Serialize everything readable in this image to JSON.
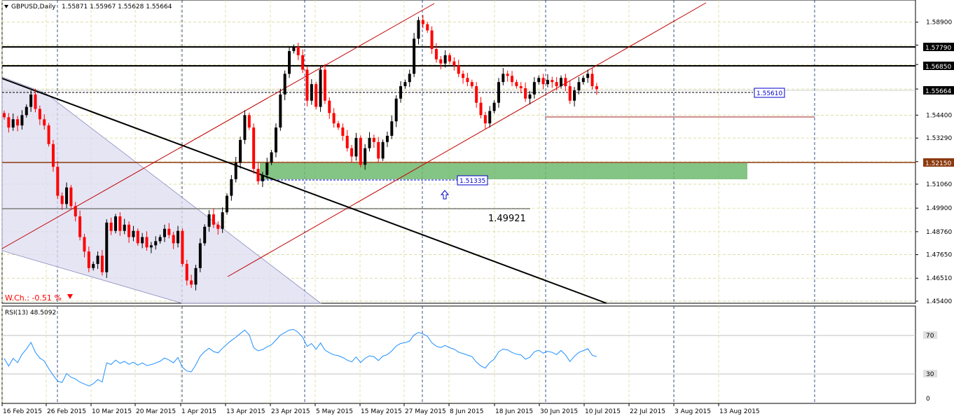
{
  "header": {
    "symbol_text": "GBPUSD,Daily",
    "quote_text": "1.55871 1.55967 1.55628 1.55664"
  },
  "rsi": {
    "label": "RSI(13) 48.5092",
    "levels": [
      "70",
      "30",
      "0"
    ]
  },
  "annotations": {
    "weekly_change": "W.Ch.: -0.51 %",
    "level_1_4992": "1.49921",
    "support_label": "1.51335",
    "resistance_label": "1.55610"
  },
  "colors": {
    "bull": "#000000",
    "bear": "#ff0000",
    "grid": "#d4d48a",
    "support_zone": "#6fba6f",
    "channel": "#c00000",
    "trend": "#000000",
    "rsi_line": "#1e90ff",
    "wedge_fill": "#dcdcf0"
  },
  "chart_data": {
    "type": "candlestick",
    "title": "GBPUSD,Daily",
    "x_ticks": [
      "16 Feb 2015",
      "26 Feb 2015",
      "10 Mar 2015",
      "20 Mar 2015",
      "1 Apr 2015",
      "13 Apr 2015",
      "23 Apr 2015",
      "5 May 2015",
      "15 May 2015",
      "27 May 2015",
      "8 Jun 2015",
      "18 Jun 2015",
      "30 Jun 2015",
      "10 Jul 2015",
      "22 Jul 2015",
      "3 Aug 2015",
      "13 Aug 2015"
    ],
    "y_ticks": [
      "1.58900",
      "1.57790",
      "1.56850",
      "1.55664",
      "1.54400",
      "1.53290",
      "1.52150",
      "1.51060",
      "1.49900",
      "1.48760",
      "1.47650",
      "1.46510",
      "1.45400"
    ],
    "ylim": [
      1.454,
      1.597
    ],
    "horizontal_levels": [
      1.5779,
      1.5685,
      1.5215,
      1.4992,
      1.5561,
      1.5134
    ],
    "closes": [
      1.543,
      1.538,
      1.542,
      1.539,
      1.544,
      1.548,
      1.554,
      1.547,
      1.542,
      1.539,
      1.53,
      1.519,
      1.505,
      1.501,
      1.509,
      1.5,
      1.495,
      1.485,
      1.478,
      1.47,
      1.472,
      1.476,
      1.468,
      1.492,
      1.488,
      1.495,
      1.488,
      1.491,
      1.485,
      1.488,
      1.482,
      1.485,
      1.48,
      1.481,
      1.483,
      1.485,
      1.489,
      1.486,
      1.482,
      1.488,
      1.472,
      1.464,
      1.462,
      1.47,
      1.482,
      1.49,
      1.496,
      1.491,
      1.489,
      1.497,
      1.505,
      1.513,
      1.521,
      1.532,
      1.544,
      1.538,
      1.518,
      1.512,
      1.515,
      1.521,
      1.526,
      1.538,
      1.554,
      1.564,
      1.575,
      1.577,
      1.573,
      1.566,
      1.551,
      1.559,
      1.548,
      1.566,
      1.551,
      1.545,
      1.54,
      1.538,
      1.534,
      1.528,
      1.524,
      1.533,
      1.52,
      1.528,
      1.533,
      1.531,
      1.523,
      1.531,
      1.534,
      1.541,
      1.552,
      1.558,
      1.56,
      1.564,
      1.581,
      1.59,
      1.588,
      1.585,
      1.576,
      1.571,
      1.569,
      1.573,
      1.57,
      1.568,
      1.564,
      1.562,
      1.56,
      1.558,
      1.55,
      1.544,
      1.54,
      1.546,
      1.55,
      1.56,
      1.564,
      1.563,
      1.56,
      1.558,
      1.557,
      1.552,
      1.554,
      1.56,
      1.562,
      1.559,
      1.561,
      1.56,
      1.558,
      1.562,
      1.558,
      1.551,
      1.556,
      1.56,
      1.562,
      1.564,
      1.558,
      1.5566
    ]
  }
}
